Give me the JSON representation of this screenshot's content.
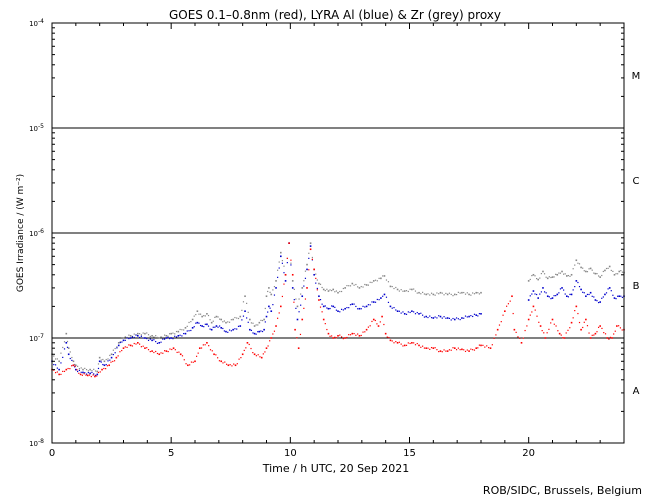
{
  "chart_data": {
    "type": "scatter",
    "title": "GOES 0.1–0.8nm (red), LYRA Al (blue) & Zr (grey) proxy",
    "xlabel": "Time / h UTC, 20 Sep 2021",
    "ylabel": "GOES Irradiance / (W m⁻²)",
    "xlim": [
      0,
      24
    ],
    "ylim": [
      1e-08,
      0.0001
    ],
    "yscale": "log",
    "x_ticks": [
      "0",
      "5",
      "10",
      "15",
      "20"
    ],
    "x_tick_values": [
      0,
      5,
      10,
      15,
      20
    ],
    "y_ticks": [
      {
        "value": 0.0001,
        "mantissa": "10",
        "exp": "-4"
      },
      {
        "value": 1e-05,
        "mantissa": "10",
        "exp": "-5"
      },
      {
        "value": 1e-06,
        "mantissa": "10",
        "exp": "-6"
      },
      {
        "value": 1e-07,
        "mantissa": "10",
        "exp": "-7"
      },
      {
        "value": 1e-08,
        "mantissa": "10",
        "exp": "-8"
      }
    ],
    "flare_class_lines": [
      1e-05,
      1e-06,
      1e-07
    ],
    "flare_classes": [
      {
        "label": "M",
        "value": 3.2e-05
      },
      {
        "label": "C",
        "value": 3.2e-06
      },
      {
        "label": "B",
        "value": 3.2e-07
      },
      {
        "label": "A",
        "value": 3.2e-08
      }
    ],
    "series": [
      {
        "color": "#888888",
        "x": [
          0.0,
          0.3,
          0.6,
          0.7,
          0.9,
          1.0,
          1.3,
          1.6,
          1.9,
          2.0,
          2.2,
          2.5,
          2.8,
          3.0,
          3.3,
          3.6,
          3.9,
          4.2,
          4.5,
          4.8,
          5.0,
          5.3,
          5.6,
          5.9,
          6.1,
          6.3,
          6.5,
          6.7,
          6.9,
          7.1,
          7.3,
          7.6,
          7.9,
          8.1,
          8.3,
          8.5,
          8.7,
          8.9,
          9.0,
          9.1,
          9.2,
          9.4,
          9.6,
          9.8,
          9.95,
          10.1,
          10.3,
          10.5,
          10.7,
          10.85,
          11.0,
          11.2,
          11.4,
          11.6,
          11.8,
          12.0,
          12.3,
          12.6,
          12.9,
          13.2,
          13.5,
          13.8,
          13.95,
          14.2,
          14.5,
          14.8,
          15.1,
          15.4,
          15.7,
          16.0,
          16.3,
          16.6,
          16.9,
          17.2,
          17.5,
          17.8,
          18.0,
          20.0,
          20.2,
          20.4,
          20.6,
          20.8,
          21.0,
          21.2,
          21.4,
          21.6,
          21.8,
          22.0,
          22.2,
          22.4,
          22.6,
          22.8,
          23.0,
          23.2,
          23.4,
          23.6,
          23.8,
          24.0
        ],
        "y": [
          7e-08,
          6e-08,
          1.1e-07,
          8e-08,
          6e-08,
          5.5e-08,
          5e-08,
          5e-08,
          4.8e-08,
          6.5e-08,
          6e-08,
          7e-08,
          9e-08,
          1e-07,
          1.05e-07,
          1.1e-07,
          1.1e-07,
          1.05e-07,
          1e-07,
          1.05e-07,
          1.1e-07,
          1.15e-07,
          1.25e-07,
          1.5e-07,
          1.8e-07,
          1.6e-07,
          1.7e-07,
          1.4e-07,
          1.6e-07,
          1.5e-07,
          1.4e-07,
          1.5e-07,
          1.6e-07,
          2.5e-07,
          1.5e-07,
          1.3e-07,
          1.4e-07,
          1.5e-07,
          2.5e-07,
          3e-07,
          2.6e-07,
          3.5e-07,
          6.5e-07,
          4e-07,
          8e-07,
          3.5e-07,
          2e-07,
          3e-07,
          5e-07,
          8e-07,
          4.5e-07,
          3.3e-07,
          2.9e-07,
          2.8e-07,
          2.9e-07,
          2.7e-07,
          3e-07,
          3.3e-07,
          3e-07,
          3.2e-07,
          3.5e-07,
          3.7e-07,
          3.9e-07,
          3.1e-07,
          2.9e-07,
          2.8e-07,
          2.9e-07,
          2.7e-07,
          2.6e-07,
          2.6e-07,
          2.7e-07,
          2.6e-07,
          2.6e-07,
          2.7e-07,
          2.6e-07,
          2.7e-07,
          2.7e-07,
          3.5e-07,
          4e-07,
          3.6e-07,
          4.3e-07,
          3.7e-07,
          3.8e-07,
          4e-07,
          4.3e-07,
          3.9e-07,
          4e-07,
          5.5e-07,
          4.7e-07,
          4.3e-07,
          4.6e-07,
          4.1e-07,
          3.8e-07,
          4.4e-07,
          4.8e-07,
          4e-07,
          4.3e-07,
          4.2e-07
        ]
      },
      {
        "color": "#0000cc",
        "x": [
          0.0,
          0.3,
          0.6,
          0.7,
          0.9,
          1.0,
          1.3,
          1.6,
          1.9,
          2.0,
          2.2,
          2.5,
          2.8,
          3.0,
          3.3,
          3.6,
          3.9,
          4.2,
          4.5,
          4.8,
          5.0,
          5.3,
          5.6,
          5.9,
          6.1,
          6.3,
          6.5,
          6.7,
          6.9,
          7.1,
          7.3,
          7.6,
          7.9,
          8.1,
          8.3,
          8.5,
          8.7,
          8.9,
          9.0,
          9.1,
          9.2,
          9.4,
          9.6,
          9.8,
          9.95,
          10.1,
          10.3,
          10.5,
          10.7,
          10.85,
          11.0,
          11.2,
          11.4,
          11.6,
          11.8,
          12.0,
          12.3,
          12.6,
          12.9,
          13.2,
          13.5,
          13.8,
          13.95,
          14.2,
          14.5,
          14.8,
          15.1,
          15.4,
          15.7,
          16.0,
          16.3,
          16.6,
          16.9,
          17.2,
          17.5,
          17.8,
          18.0,
          20.0,
          20.2,
          20.4,
          20.6,
          20.8,
          21.0,
          21.2,
          21.4,
          21.6,
          21.8,
          22.0,
          22.2,
          22.4,
          22.6,
          22.8,
          23.0,
          23.2,
          23.4,
          23.6,
          23.8,
          24.0
        ],
        "y": [
          6e-08,
          5e-08,
          9e-08,
          7e-08,
          5.5e-08,
          5e-08,
          4.7e-08,
          4.6e-08,
          4.5e-08,
          6e-08,
          5.5e-08,
          6.5e-08,
          8.5e-08,
          9.5e-08,
          1e-07,
          1.05e-07,
          1e-07,
          9.5e-08,
          9e-08,
          1e-07,
          1e-07,
          1.05e-07,
          1.1e-07,
          1.25e-07,
          1.4e-07,
          1.3e-07,
          1.35e-07,
          1.2e-07,
          1.3e-07,
          1.25e-07,
          1.15e-07,
          1.2e-07,
          1.3e-07,
          1.8e-07,
          1.2e-07,
          1.1e-07,
          1.15e-07,
          1.2e-07,
          1.6e-07,
          2e-07,
          1.8e-07,
          3e-07,
          6e-07,
          3.5e-07,
          8e-07,
          3e-07,
          1.5e-07,
          2.5e-07,
          4.5e-07,
          7.5e-07,
          4e-07,
          2.5e-07,
          2e-07,
          1.9e-07,
          2e-07,
          1.8e-07,
          1.9e-07,
          2.1e-07,
          1.9e-07,
          2e-07,
          2.2e-07,
          2.4e-07,
          2.6e-07,
          2e-07,
          1.8e-07,
          1.7e-07,
          1.8e-07,
          1.7e-07,
          1.6e-07,
          1.55e-07,
          1.6e-07,
          1.55e-07,
          1.5e-07,
          1.55e-07,
          1.6e-07,
          1.65e-07,
          1.7e-07,
          2.3e-07,
          2.8e-07,
          2.4e-07,
          3e-07,
          2.5e-07,
          2.4e-07,
          2.6e-07,
          3e-07,
          2.5e-07,
          2.6e-07,
          3.5e-07,
          2.9e-07,
          2.5e-07,
          2.7e-07,
          2.3e-07,
          2.2e-07,
          2.6e-07,
          3e-07,
          2.4e-07,
          2.5e-07,
          2.5e-07
        ]
      },
      {
        "color": "#ff0000",
        "x": [
          0.0,
          0.3,
          0.6,
          0.9,
          1.2,
          1.5,
          1.8,
          2.1,
          2.4,
          2.7,
          3.0,
          3.3,
          3.6,
          3.9,
          4.2,
          4.5,
          4.8,
          5.1,
          5.4,
          5.7,
          6.0,
          6.2,
          6.5,
          6.8,
          7.1,
          7.4,
          7.7,
          8.0,
          8.2,
          8.5,
          8.8,
          9.0,
          9.2,
          9.4,
          9.6,
          9.8,
          9.95,
          10.1,
          10.2,
          10.35,
          10.5,
          10.7,
          10.85,
          11.0,
          11.2,
          11.4,
          11.6,
          11.8,
          12.0,
          12.3,
          12.6,
          12.9,
          13.2,
          13.5,
          13.7,
          13.85,
          14.0,
          14.2,
          14.5,
          14.8,
          15.1,
          15.4,
          15.7,
          16.0,
          16.3,
          16.6,
          16.9,
          17.2,
          17.5,
          17.8,
          18.0,
          18.4,
          18.7,
          19.0,
          19.3,
          19.4,
          19.7,
          20.0,
          20.2,
          20.5,
          20.7,
          21.0,
          21.3,
          21.5,
          21.8,
          22.0,
          22.2,
          22.4,
          22.6,
          22.8,
          23.0,
          23.3,
          23.5,
          23.7,
          24.0
        ],
        "y": [
          5e-08,
          4.5e-08,
          5e-08,
          5.5e-08,
          4.5e-08,
          4.4e-08,
          4.3e-08,
          5e-08,
          5.5e-08,
          6.5e-08,
          8e-08,
          8.5e-08,
          9e-08,
          8e-08,
          7.5e-08,
          7e-08,
          7.5e-08,
          8e-08,
          7e-08,
          5.5e-08,
          6e-08,
          8e-08,
          9e-08,
          7e-08,
          6e-08,
          5.5e-08,
          5.5e-08,
          7e-08,
          9e-08,
          7e-08,
          6.5e-08,
          8e-08,
          1e-07,
          1.3e-07,
          2e-07,
          4e-07,
          8e-07,
          4e-07,
          1.2e-07,
          8e-08,
          1.5e-07,
          3e-07,
          7e-07,
          4.5e-07,
          2.3e-07,
          1.5e-07,
          1.1e-07,
          1e-07,
          1.05e-07,
          1e-07,
          1.1e-07,
          1.05e-07,
          1.2e-07,
          1.5e-07,
          1.3e-07,
          1.6e-07,
          1.1e-07,
          9.5e-08,
          9e-08,
          8.5e-08,
          9e-08,
          8.5e-08,
          8e-08,
          8e-08,
          7.5e-08,
          7.5e-08,
          8e-08,
          7.8e-08,
          7.5e-08,
          8e-08,
          8.5e-08,
          8e-08,
          1.2e-07,
          1.8e-07,
          2.5e-07,
          1.2e-07,
          9e-08,
          1.5e-07,
          2e-07,
          1.3e-07,
          1e-07,
          1.5e-07,
          1.1e-07,
          1e-07,
          1.4e-07,
          2e-07,
          1.2e-07,
          1.5e-07,
          1e-07,
          1.1e-07,
          1.3e-07,
          1e-07,
          1e-07,
          1.3e-07,
          1.2e-07
        ]
      }
    ]
  },
  "credit": "ROB/SIDC, Brussels, Belgium"
}
